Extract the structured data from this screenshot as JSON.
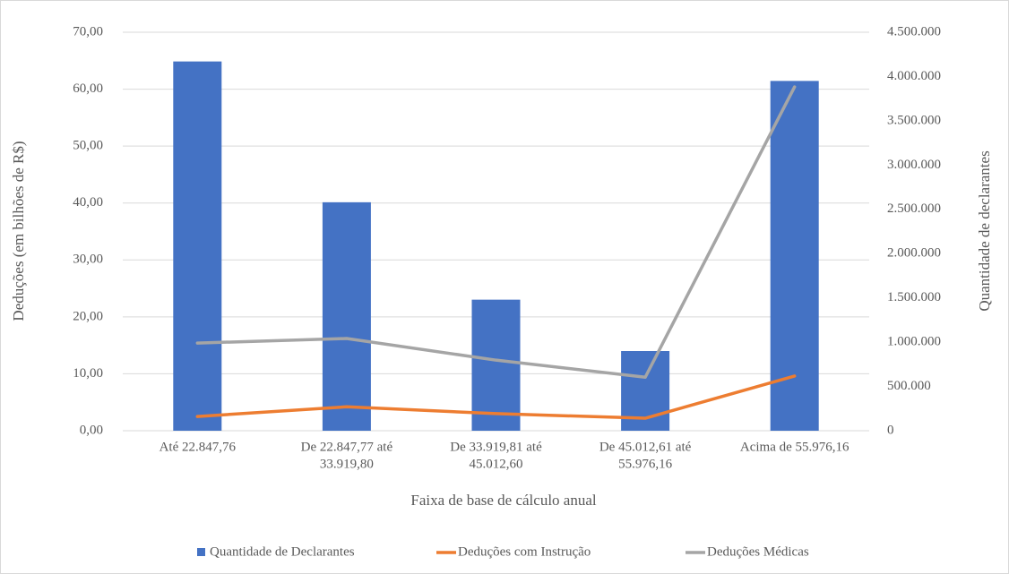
{
  "chart_data": {
    "type": "bar-line",
    "x_label": "Faixa de base de cálculo anual",
    "y_label": "Deduções (em bilhões de R$)",
    "y2_label": "Quantidade de declarantes",
    "categories": [
      [
        "Até 22.847,76"
      ],
      [
        "De 22.847,77 até",
        "33.919,80"
      ],
      [
        "De 33.919,81 até",
        "45.012,60"
      ],
      [
        "De 45.012,61 até",
        "55.976,16"
      ],
      [
        "Acima de 55.976,16"
      ]
    ],
    "series": [
      {
        "name": "Quantidade de Declarantes",
        "type": "bar",
        "axis": "y2",
        "color": "#4472c4",
        "values": [
          4170000,
          2580000,
          1480000,
          900000,
          3950000
        ]
      },
      {
        "name": "Deduções com Instrução",
        "type": "line",
        "axis": "y",
        "color": "#ed7d31",
        "values": [
          2.5,
          4.2,
          3.0,
          2.2,
          9.6
        ]
      },
      {
        "name": "Deduções Médicas",
        "type": "line",
        "axis": "y",
        "color": "#a5a5a5",
        "values": [
          15.4,
          16.2,
          12.4,
          9.4,
          60.4
        ]
      }
    ],
    "ylim": [
      0,
      70
    ],
    "yticks": [
      {
        "value": 0,
        "label": "0,00"
      },
      {
        "value": 10,
        "label": "10,00"
      },
      {
        "value": 20,
        "label": "20,00"
      },
      {
        "value": 30,
        "label": "30,00"
      },
      {
        "value": 40,
        "label": "40,00"
      },
      {
        "value": 50,
        "label": "50,00"
      },
      {
        "value": 60,
        "label": "60,00"
      },
      {
        "value": 70,
        "label": "70,00"
      }
    ],
    "y2lim": [
      0,
      4500000
    ],
    "y2ticks": [
      0,
      {
        "value": 500000,
        "label": "500.000"
      },
      {
        "value": 1000000,
        "label": "1.000.000"
      },
      {
        "value": 1500000,
        "label": "1.500.000"
      },
      {
        "value": 2000000,
        "label": "2.000.000"
      },
      {
        "value": 2500000,
        "label": "2.500.000"
      },
      {
        "value": 3000000,
        "label": "3.000.000"
      },
      {
        "value": 3500000,
        "label": "3.500.000"
      },
      {
        "value": 4000000,
        "label": "4.000.000"
      },
      {
        "value": 4500000,
        "label": "4.500.000"
      }
    ],
    "grid": true,
    "legend": "bottom"
  }
}
